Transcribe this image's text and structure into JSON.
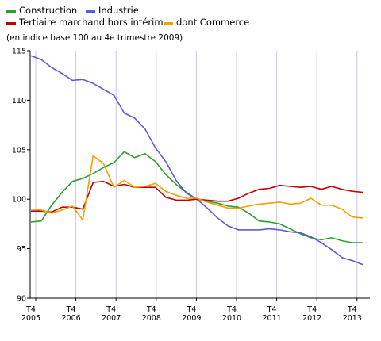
{
  "chart_data": {
    "type": "line",
    "subtitle": "(en indice base 100 au 4e trimestre 2009)",
    "xlabel": "",
    "ylabel": "",
    "ylim": [
      90,
      115
    ],
    "yticks": [
      90,
      95,
      100,
      105,
      110,
      115
    ],
    "x_start_year": 2005,
    "x_end_year": 2013,
    "xticks": [
      {
        "q": "T4",
        "year": "2005"
      },
      {
        "q": "T4",
        "year": "2006"
      },
      {
        "q": "T4",
        "year": "2007"
      },
      {
        "q": "T4",
        "year": "2008"
      },
      {
        "q": "T4",
        "year": "2009"
      },
      {
        "q": "T4",
        "year": "2010"
      },
      {
        "q": "T4",
        "year": "2011"
      },
      {
        "q": "T4",
        "year": "2012"
      },
      {
        "q": "T4",
        "year": "2013"
      }
    ],
    "grid": {
      "vertical": true,
      "horizontal": false
    },
    "legend_position": "top-left",
    "series": [
      {
        "name": "Construction",
        "color": "#2ca02c",
        "values": [
          97.7,
          97.8,
          99.4,
          100.7,
          101.8,
          102.1,
          102.6,
          103.2,
          103.7,
          104.8,
          104.2,
          104.6,
          103.8,
          102.5,
          101.5,
          100.7,
          100.0,
          99.8,
          99.6,
          99.3,
          99.2,
          98.6,
          97.8,
          97.7,
          97.5,
          97.0,
          96.5,
          96.1,
          95.9,
          96.1,
          95.8,
          95.6
        ]
      },
      {
        "name": "Industrie",
        "color": "#5a5adc",
        "values": [
          114.5,
          114.1,
          113.3,
          112.7,
          112.0,
          112.1,
          111.7,
          111.1,
          110.5,
          108.7,
          108.2,
          107.1,
          105.2,
          103.8,
          101.9,
          100.6,
          100.0,
          99.1,
          98.1,
          97.3,
          96.9,
          96.9,
          96.9,
          97.0,
          96.9,
          96.7,
          96.6,
          96.2,
          95.6,
          94.9,
          94.1,
          93.8
        ]
      },
      {
        "name": "Tertiaire marchand hors intérim",
        "color": "#c00000",
        "values": [
          98.8,
          98.8,
          98.7,
          99.2,
          99.2,
          99.0,
          101.7,
          101.8,
          101.3,
          101.5,
          101.2,
          101.2,
          101.2,
          100.2,
          99.9,
          99.9,
          100.0,
          99.9,
          99.8,
          99.8,
          100.1,
          100.6,
          101.0,
          101.1,
          101.4,
          101.3,
          101.2,
          101.3,
          101.0,
          101.3,
          101.0,
          100.8
        ]
      },
      {
        "name": "dont Commerce",
        "color": "#f0a000",
        "values": [
          99.0,
          98.9,
          98.6,
          98.9,
          99.3,
          97.9,
          104.4,
          103.6,
          101.2,
          101.9,
          101.2,
          101.3,
          101.6,
          100.8,
          100.4,
          100.1,
          100.1,
          99.7,
          99.4,
          99.1,
          99.1,
          99.3,
          99.5,
          99.6,
          99.7,
          99.5,
          99.6,
          100.1,
          99.4,
          99.4,
          99.0,
          98.2
        ]
      }
    ],
    "series_extra_last": [
      95.6,
      93.4,
      100.7,
      98.1
    ]
  }
}
